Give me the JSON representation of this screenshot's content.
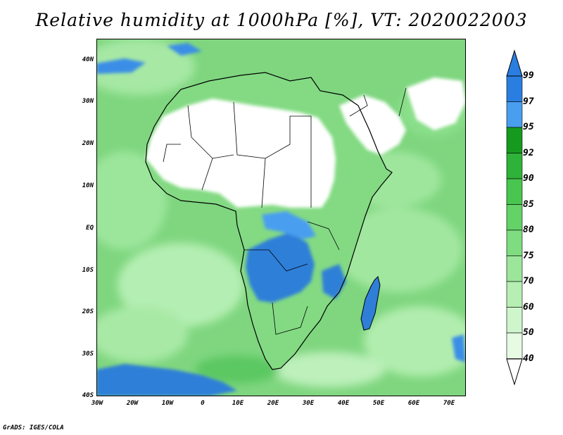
{
  "title": "Relative humidity at 1000hPa [%], VT: 2020022003",
  "credit": "GrADS: IGES/COLA",
  "lat_labels": [
    "40N",
    "30N",
    "20N",
    "10N",
    "EQ",
    "10S",
    "20S",
    "30S",
    "40S"
  ],
  "lon_labels": [
    "30W",
    "20W",
    "10W",
    "0",
    "10E",
    "20E",
    "30E",
    "40E",
    "50E",
    "60E",
    "70E"
  ],
  "colorbar": {
    "labels": [
      "99",
      "97",
      "95",
      "92",
      "90",
      "85",
      "80",
      "75",
      "70",
      "60",
      "50",
      "40"
    ],
    "colors": [
      "#2a7ee0",
      "#4a9ef0",
      "#159a1f",
      "#2fb23a",
      "#48c64f",
      "#63d267",
      "#7fdc80",
      "#9ce69c",
      "#b6eeb4",
      "#cff5cc",
      "#e6fae4"
    ]
  },
  "colors": {
    "dry": "#ffffff",
    "ocean_base": "#7fd67f",
    "humid": "#2f7fd8",
    "border": "#000000"
  }
}
